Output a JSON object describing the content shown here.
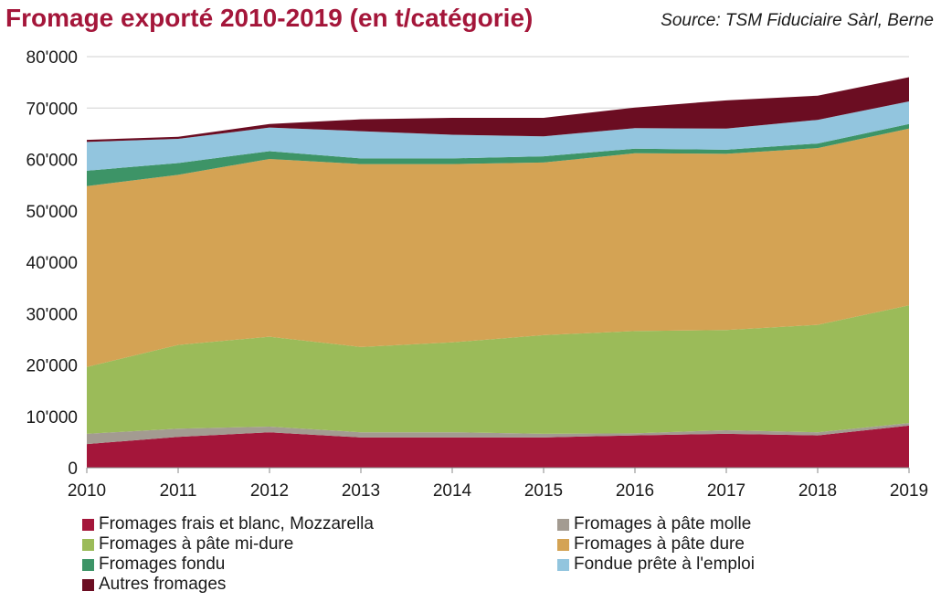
{
  "title": "Fromage exporté 2010-2019 (en t/catégorie)",
  "source": "Source: TSM Fiduciaire Sàrl, Berne",
  "chart_data": {
    "type": "area",
    "stacked": true,
    "x": [
      2010,
      2011,
      2012,
      2013,
      2014,
      2015,
      2016,
      2017,
      2018,
      2019
    ],
    "xlabel": "",
    "ylabel": "",
    "ylim": [
      0,
      80000
    ],
    "yticks": [
      0,
      10000,
      20000,
      30000,
      40000,
      50000,
      60000,
      70000,
      80000
    ],
    "ytick_labels": [
      "0",
      "10'000",
      "20'000",
      "30'000",
      "40'000",
      "50'000",
      "60'000",
      "70'000",
      "80'000"
    ],
    "grid": "horizontal",
    "legend_position": "bottom",
    "series": [
      {
        "name": "Fromages frais et blanc, Mozzarella",
        "color": "#a4163a",
        "values": [
          4600,
          6000,
          6900,
          5900,
          5900,
          5900,
          6300,
          6600,
          6300,
          8200
        ]
      },
      {
        "name": "Fromages à pâte molle",
        "color": "#a39b91",
        "values": [
          2000,
          1600,
          1100,
          1000,
          1000,
          700,
          400,
          700,
          600,
          500
        ]
      },
      {
        "name": "Fromages à pâte mi-dure",
        "color": "#9bbb59",
        "values": [
          13000,
          16300,
          17500,
          16600,
          17500,
          19200,
          19900,
          19500,
          20900,
          22900
        ]
      },
      {
        "name": "Fromages à pâte dure",
        "color": "#d4a354",
        "values": [
          35200,
          33100,
          34600,
          35600,
          34700,
          33600,
          34600,
          34300,
          34400,
          34400
        ]
      },
      {
        "name": "Fromages fondu",
        "color": "#3d9467",
        "values": [
          3000,
          2300,
          1500,
          1100,
          1100,
          1200,
          900,
          800,
          900,
          900
        ]
      },
      {
        "name": "Fondue prête à l'emploi",
        "color": "#92c5de",
        "values": [
          5600,
          4700,
          4600,
          5300,
          4600,
          3900,
          4000,
          4100,
          4600,
          4400
        ]
      },
      {
        "name": "Autres fromages",
        "color": "#6b0d22",
        "values": [
          400,
          400,
          700,
          2300,
          3300,
          3600,
          4000,
          5500,
          4700,
          4700
        ]
      }
    ]
  }
}
